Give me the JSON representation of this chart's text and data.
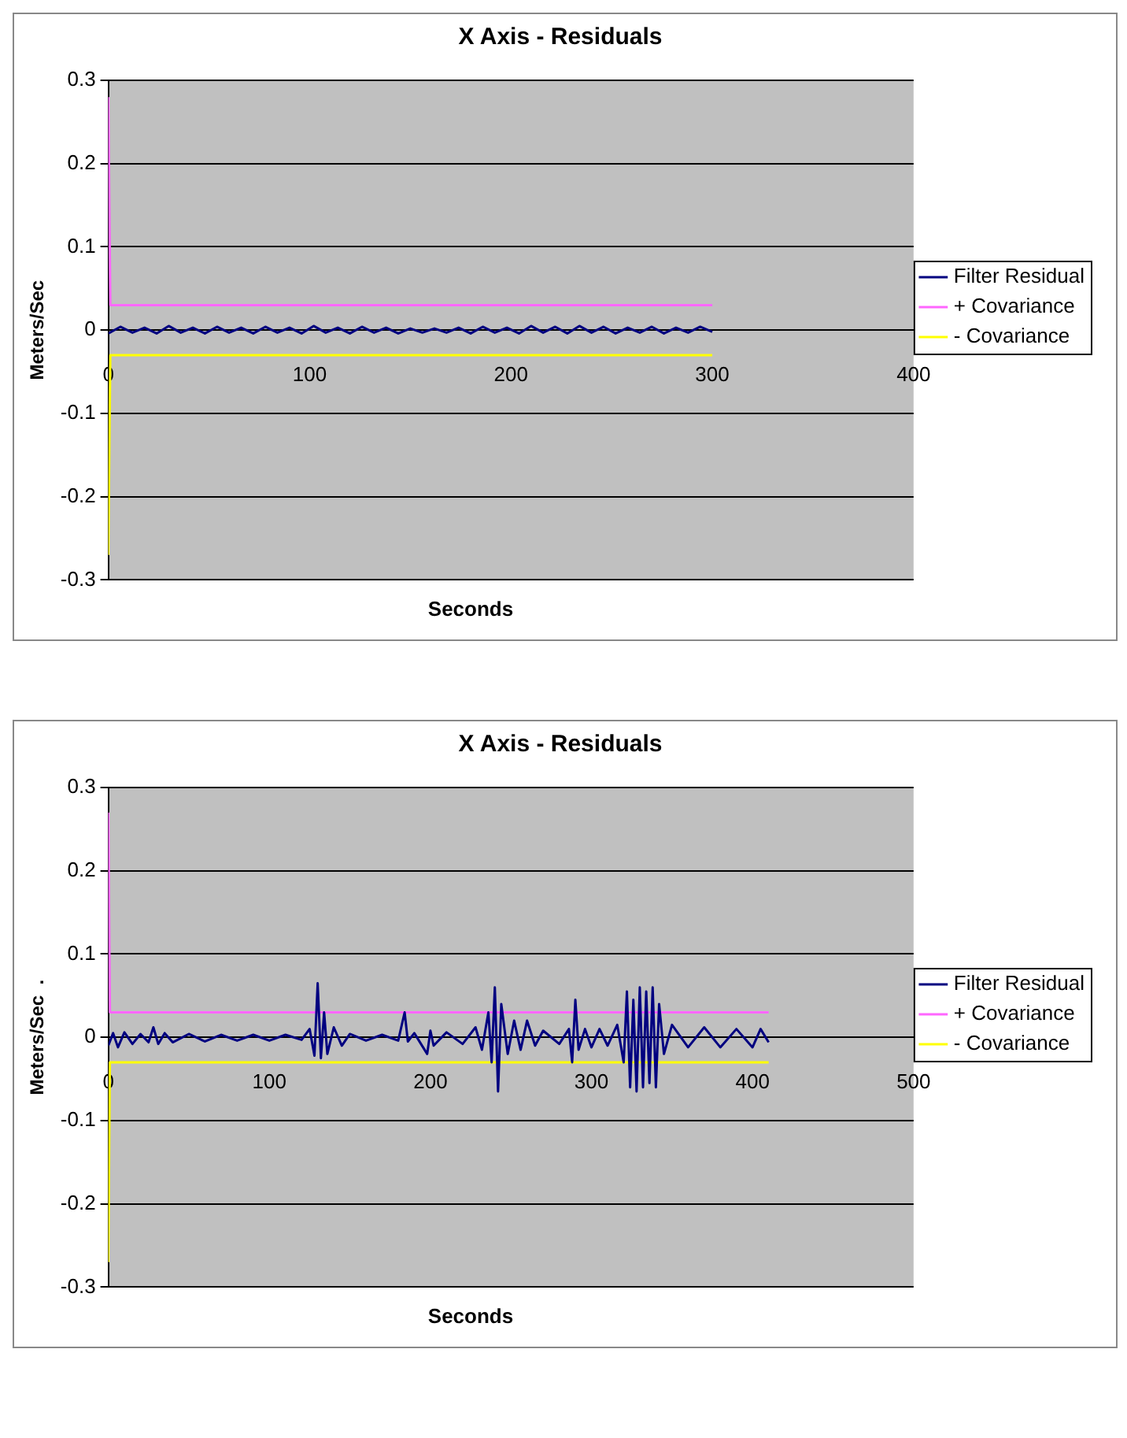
{
  "chart_data": [
    {
      "type": "line",
      "title": "X Axis - Residuals",
      "xlabel": "Seconds",
      "ylabel": "Meters/Sec",
      "xlim": [
        0,
        400
      ],
      "xticks": [
        0,
        100,
        200,
        300,
        400
      ],
      "ylim": [
        -0.3,
        0.3
      ],
      "yticks": [
        -0.3,
        -0.2,
        -0.1,
        0,
        0.1,
        0.2,
        0.3
      ],
      "grid": "y",
      "legend": "right",
      "marker": "none",
      "line_style": "solid",
      "series": [
        {
          "name": "Filter Residual",
          "color": "#000080",
          "x": [
            0,
            6,
            12,
            18,
            24,
            30,
            36,
            42,
            48,
            54,
            60,
            66,
            72,
            78,
            84,
            90,
            96,
            102,
            108,
            114,
            120,
            126,
            132,
            138,
            144,
            150,
            156,
            162,
            168,
            174,
            180,
            186,
            192,
            198,
            204,
            210,
            216,
            222,
            228,
            234,
            240,
            246,
            252,
            258,
            264,
            270,
            276,
            282,
            288,
            294,
            300
          ],
          "values": [
            -0.004,
            0.004,
            -0.003,
            0.003,
            -0.004,
            0.005,
            -0.003,
            0.003,
            -0.004,
            0.004,
            -0.003,
            0.003,
            -0.004,
            0.004,
            -0.003,
            0.003,
            -0.004,
            0.005,
            -0.003,
            0.003,
            -0.004,
            0.004,
            -0.003,
            0.003,
            -0.004,
            0.002,
            -0.003,
            0.002,
            -0.003,
            0.003,
            -0.004,
            0.004,
            -0.003,
            0.003,
            -0.004,
            0.005,
            -0.003,
            0.004,
            -0.004,
            0.005,
            -0.003,
            0.004,
            -0.004,
            0.003,
            -0.003,
            0.004,
            -0.004,
            0.003,
            -0.003,
            0.004,
            -0.002
          ]
        },
        {
          "name": "+ Covariance",
          "color": "#ff66ff",
          "x": [
            0,
            1,
            300
          ],
          "values": [
            0.28,
            0.03,
            0.03
          ]
        },
        {
          "name": "- Covariance",
          "color": "#ffff00",
          "x": [
            0,
            1,
            300
          ],
          "values": [
            -0.27,
            -0.03,
            -0.03
          ]
        }
      ]
    },
    {
      "type": "line",
      "title": "X Axis - Residuals",
      "xlabel": "Seconds",
      "ylabel": "Meters/Sec  .",
      "xlim": [
        0,
        500
      ],
      "xticks": [
        0,
        100,
        200,
        300,
        400,
        500
      ],
      "ylim": [
        -0.3,
        0.3
      ],
      "yticks": [
        -0.3,
        -0.2,
        -0.1,
        0,
        0.1,
        0.2,
        0.3
      ],
      "grid": "y",
      "legend": "right",
      "marker": "none",
      "line_style": "solid",
      "series": [
        {
          "name": "Filter Residual",
          "color": "#000080",
          "x": [
            0,
            3,
            6,
            10,
            15,
            20,
            25,
            28,
            31,
            35,
            40,
            50,
            60,
            70,
            80,
            90,
            100,
            110,
            120,
            125,
            128,
            130,
            132,
            134,
            136,
            140,
            145,
            150,
            160,
            170,
            180,
            184,
            186,
            190,
            198,
            200,
            202,
            210,
            220,
            228,
            232,
            236,
            238,
            240,
            242,
            244,
            248,
            252,
            256,
            260,
            265,
            270,
            280,
            286,
            288,
            290,
            292,
            296,
            300,
            305,
            310,
            316,
            320,
            322,
            324,
            326,
            328,
            330,
            332,
            334,
            336,
            338,
            340,
            342,
            345,
            350,
            360,
            370,
            380,
            390,
            400,
            405,
            410
          ],
          "values": [
            -0.01,
            0.005,
            -0.012,
            0.006,
            -0.008,
            0.004,
            -0.006,
            0.012,
            -0.008,
            0.005,
            -0.006,
            0.004,
            -0.005,
            0.003,
            -0.004,
            0.003,
            -0.004,
            0.003,
            -0.003,
            0.01,
            -0.022,
            0.065,
            -0.025,
            0.03,
            -0.02,
            0.012,
            -0.01,
            0.004,
            -0.004,
            0.003,
            -0.004,
            0.03,
            -0.005,
            0.005,
            -0.02,
            0.008,
            -0.01,
            0.006,
            -0.008,
            0.012,
            -0.015,
            0.03,
            -0.03,
            0.06,
            -0.065,
            0.04,
            -0.02,
            0.02,
            -0.015,
            0.02,
            -0.01,
            0.008,
            -0.008,
            0.01,
            -0.03,
            0.045,
            -0.015,
            0.01,
            -0.012,
            0.01,
            -0.01,
            0.015,
            -0.03,
            0.055,
            -0.06,
            0.045,
            -0.065,
            0.06,
            -0.06,
            0.055,
            -0.055,
            0.06,
            -0.06,
            0.04,
            -0.02,
            0.015,
            -0.012,
            0.012,
            -0.012,
            0.01,
            -0.012,
            0.01,
            -0.006
          ]
        },
        {
          "name": "+ Covariance",
          "color": "#ff66ff",
          "x": [
            0,
            1,
            410
          ],
          "values": [
            0.27,
            0.03,
            0.03
          ]
        },
        {
          "name": "- Covariance",
          "color": "#ffff00",
          "x": [
            0,
            1,
            410
          ],
          "values": [
            -0.27,
            -0.03,
            -0.03
          ]
        }
      ]
    }
  ]
}
